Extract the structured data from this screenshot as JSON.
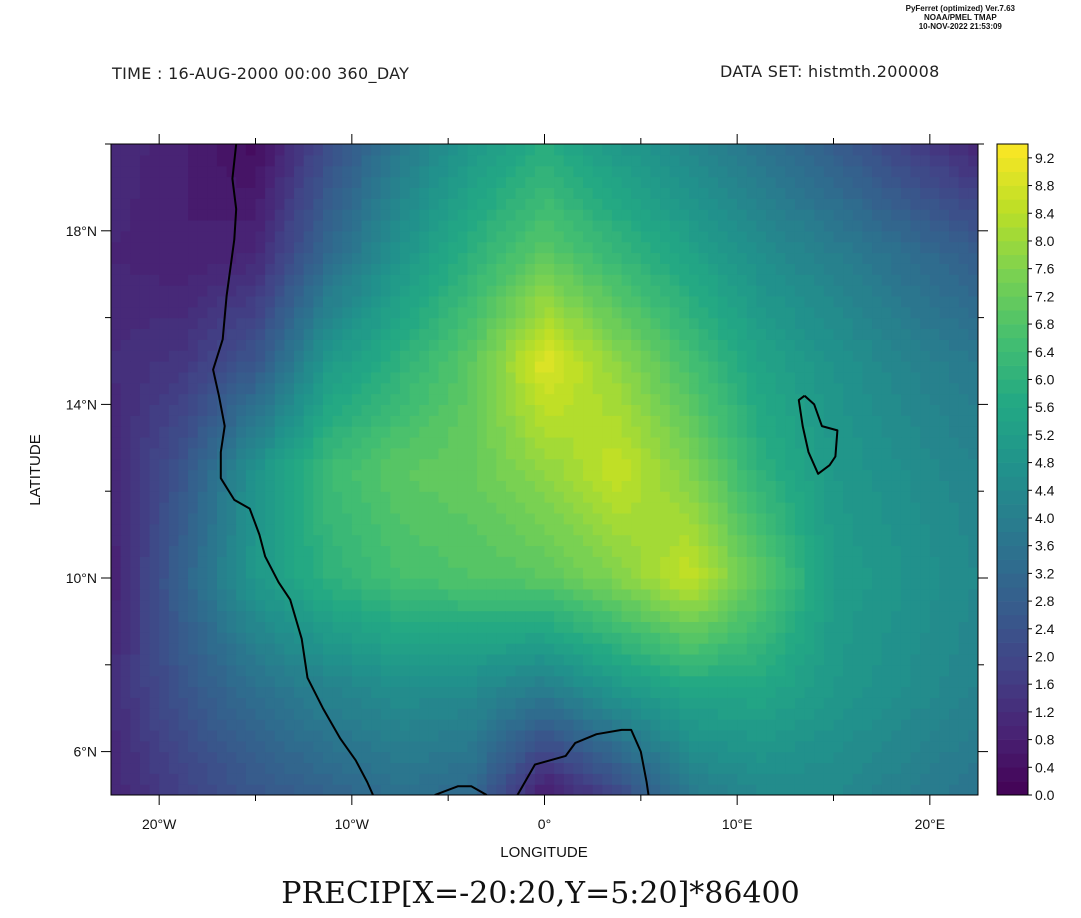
{
  "header": {
    "time_label": "TIME : 16-AUG-2000 00:00 360_DAY",
    "dataset_label": "DATA SET: histmth.200008"
  },
  "stamp": {
    "line1": "PyFerret (optimized) Ver.7.63",
    "line2": "NOAA/PMEL TMAP",
    "line3": "10-NOV-2022 21:53:09"
  },
  "expression": "PRECIP[X=-20:20,Y=5:20]*86400",
  "colors": {
    "viridis": [
      "#440154",
      "#482475",
      "#414487",
      "#355f8d",
      "#2a788e",
      "#21918c",
      "#22a884",
      "#44bf70",
      "#7ad151",
      "#bddf26",
      "#fde725"
    ],
    "coastline": "#000000"
  },
  "chart_data": {
    "type": "heatmap",
    "title": "",
    "xlabel": "LONGITUDE",
    "ylabel": "LATITUDE",
    "xlim": [
      -22.5,
      22.5
    ],
    "ylim": [
      5,
      20
    ],
    "x_ticks": [
      {
        "value": -20,
        "label": "20°W"
      },
      {
        "value": -10,
        "label": "10°W"
      },
      {
        "value": 0,
        "label": "0°"
      },
      {
        "value": 10,
        "label": "10°E"
      },
      {
        "value": 20,
        "label": "20°E"
      }
    ],
    "y_ticks": [
      {
        "value": 6,
        "label": "6°N"
      },
      {
        "value": 10,
        "label": "10°N"
      },
      {
        "value": 14,
        "label": "14°N"
      },
      {
        "value": 18,
        "label": "18°N"
      }
    ],
    "colorbar": {
      "min": 0.0,
      "max": 9.4,
      "step": 0.2,
      "labels": [
        "0.0",
        "0.4",
        "0.8",
        "1.2",
        "1.6",
        "2.0",
        "2.4",
        "2.8",
        "3.2",
        "3.6",
        "4.0",
        "4.4",
        "4.8",
        "5.2",
        "5.6",
        "6.0",
        "6.4",
        "6.8",
        "7.2",
        "7.6",
        "8.0",
        "8.4",
        "8.8",
        "9.2"
      ]
    },
    "grid": {
      "lon": [
        -22.5,
        -18.75,
        -15,
        -11.25,
        -7.5,
        -3.75,
        0,
        3.75,
        7.5,
        11.25,
        15,
        18.75,
        22.5
      ],
      "lat": [
        5,
        7.5,
        10,
        12.5,
        15,
        17.5,
        20
      ],
      "values": [
        [
          1.0,
          1.8,
          2.5,
          3.0,
          3.5,
          3.2,
          0.6,
          2.0,
          3.8,
          4.4,
          4.4,
          4.0,
          3.6
        ],
        [
          1.2,
          2.5,
          3.5,
          4.2,
          4.6,
          4.5,
          4.0,
          5.0,
          5.6,
          5.6,
          5.0,
          4.6,
          4.2
        ],
        [
          0.8,
          3.0,
          5.0,
          6.0,
          6.6,
          6.8,
          7.0,
          7.6,
          8.6,
          7.0,
          5.2,
          4.8,
          4.4
        ],
        [
          1.0,
          2.5,
          4.8,
          6.4,
          7.0,
          7.2,
          7.8,
          8.6,
          7.6,
          6.0,
          5.0,
          4.6,
          4.2
        ],
        [
          1.2,
          1.5,
          2.5,
          5.0,
          6.0,
          7.0,
          9.0,
          7.8,
          6.6,
          5.4,
          4.8,
          4.2,
          3.8
        ],
        [
          1.0,
          0.8,
          1.0,
          3.2,
          4.8,
          6.0,
          7.0,
          6.2,
          5.4,
          4.6,
          4.0,
          3.4,
          2.8
        ],
        [
          1.2,
          0.8,
          0.3,
          2.2,
          3.8,
          5.0,
          5.8,
          5.0,
          4.4,
          3.6,
          2.8,
          1.8,
          1.0
        ]
      ]
    },
    "coastlines": [
      [
        [
          -16.0,
          20.0
        ],
        [
          -16.2,
          19.2
        ],
        [
          -16.0,
          18.5
        ],
        [
          -16.1,
          17.8
        ],
        [
          -16.5,
          16.5
        ],
        [
          -16.7,
          15.5
        ],
        [
          -17.2,
          14.8
        ],
        [
          -16.9,
          14.2
        ],
        [
          -16.6,
          13.5
        ],
        [
          -16.8,
          12.9
        ],
        [
          -16.8,
          12.3
        ],
        [
          -16.1,
          11.8
        ],
        [
          -15.3,
          11.6
        ],
        [
          -14.8,
          11.0
        ],
        [
          -14.5,
          10.5
        ],
        [
          -13.8,
          9.9
        ],
        [
          -13.2,
          9.5
        ],
        [
          -12.6,
          8.6
        ],
        [
          -12.3,
          7.7
        ],
        [
          -11.5,
          7.0
        ],
        [
          -10.6,
          6.3
        ],
        [
          -9.8,
          5.8
        ],
        [
          -9.2,
          5.3
        ],
        [
          -8.9,
          5.0
        ]
      ],
      [
        [
          -5.7,
          5.0
        ],
        [
          -4.5,
          5.2
        ],
        [
          -3.8,
          5.2
        ],
        [
          -3.0,
          5.0
        ]
      ],
      [
        [
          -1.4,
          5.0
        ],
        [
          -0.5,
          5.7
        ],
        [
          1.1,
          5.9
        ],
        [
          1.6,
          6.2
        ],
        [
          2.7,
          6.4
        ],
        [
          4.0,
          6.5
        ],
        [
          4.5,
          6.5
        ],
        [
          5.0,
          6.0
        ],
        [
          5.3,
          5.3
        ],
        [
          5.4,
          5.0
        ]
      ],
      [
        [
          13.5,
          14.2
        ],
        [
          14.0,
          14.0
        ],
        [
          14.4,
          13.5
        ],
        [
          15.2,
          13.4
        ],
        [
          15.1,
          12.8
        ],
        [
          14.8,
          12.6
        ],
        [
          14.2,
          12.4
        ],
        [
          13.7,
          12.9
        ],
        [
          13.4,
          13.5
        ],
        [
          13.2,
          14.1
        ],
        [
          13.5,
          14.2
        ]
      ]
    ]
  }
}
